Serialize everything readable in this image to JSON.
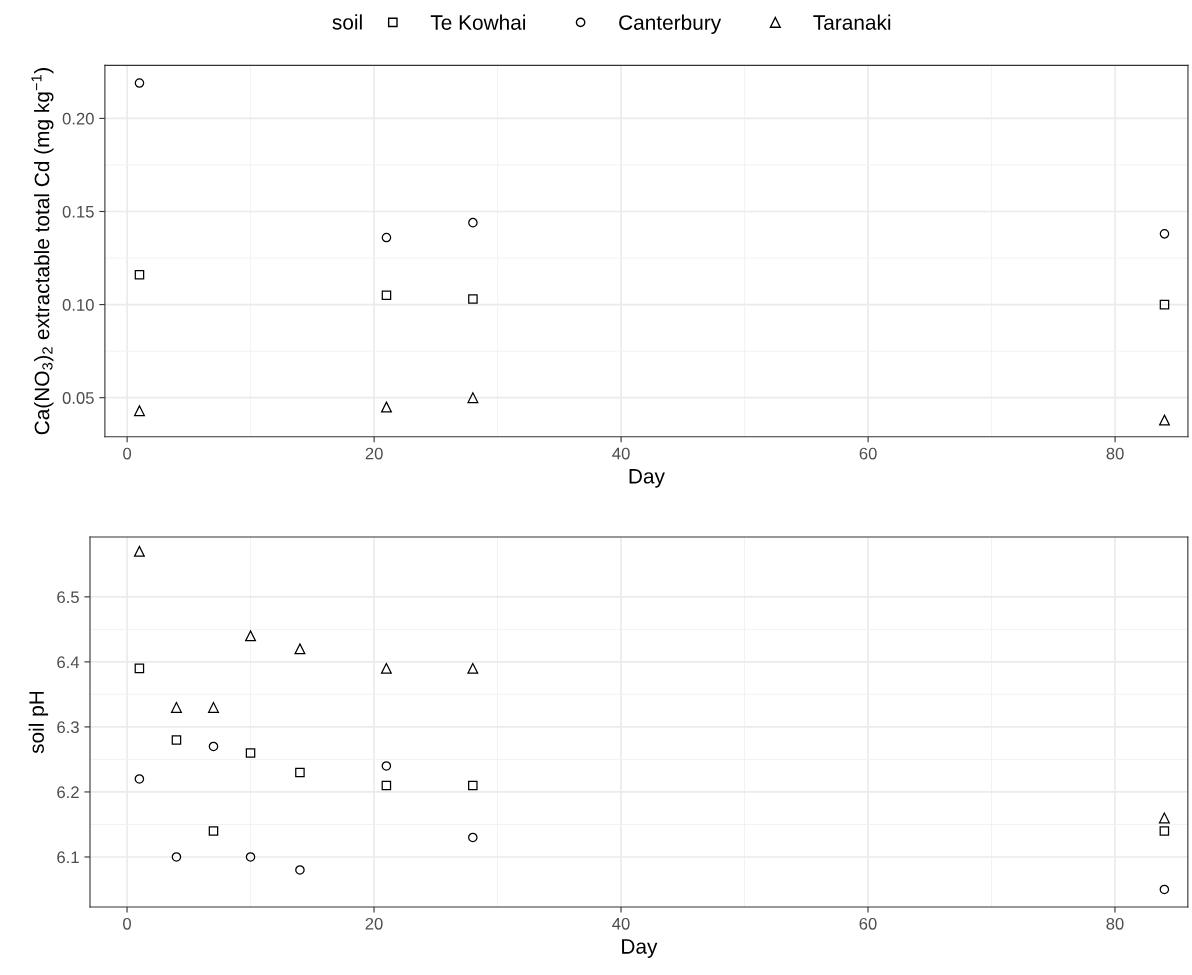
{
  "chart_data": [
    {
      "type": "scatter",
      "ylabel": "Ca(NO$_{3}$)$_{2}$ extractable total Cd (mg kg$^{−1}$)",
      "xlabel": "Day",
      "legend_title": "soil",
      "legend": "top",
      "grid": true,
      "xlim": [
        -1.8,
        85.9
      ],
      "xticks": [
        0,
        20,
        40,
        60,
        80
      ],
      "ylim": [
        0.029,
        0.2285
      ],
      "yticks": [
        {
          "value": 0.05,
          "label": "0.05"
        },
        {
          "value": 0.1,
          "label": "0.10"
        },
        {
          "value": 0.15,
          "label": "0.15"
        },
        {
          "value": 0.2,
          "label": "0.20"
        }
      ],
      "series": [
        {
          "name": "Te Kowhai",
          "color": "#000000",
          "marker": "square",
          "x": [
            1,
            21,
            28,
            84
          ],
          "values": [
            0.116,
            0.105,
            0.103,
            0.1
          ]
        },
        {
          "name": "Canterbury",
          "color": "#000000",
          "marker": "circle",
          "x": [
            1,
            21,
            28,
            84
          ],
          "values": [
            0.219,
            0.136,
            0.144,
            0.138
          ]
        },
        {
          "name": "Taranaki",
          "color": "#000000",
          "marker": "triangle",
          "x": [
            1,
            21,
            28,
            84
          ],
          "values": [
            0.043,
            0.045,
            0.05,
            0.038
          ]
        }
      ]
    },
    {
      "type": "scatter",
      "ylabel": "soil pH",
      "xlabel": "Day",
      "grid": true,
      "xlim": [
        -3.0,
        85.9
      ],
      "xticks": [
        0,
        20,
        40,
        60,
        80
      ],
      "ylim": [
        6.023,
        6.592
      ],
      "yticks": [
        6.1,
        6.2,
        6.3,
        6.4,
        6.5
      ],
      "series": [
        {
          "color": "#000000",
          "marker": "square",
          "x": [
            1,
            4,
            7,
            10,
            14,
            21,
            28,
            84
          ],
          "values": [
            6.39,
            6.28,
            6.14,
            6.26,
            6.23,
            6.21,
            6.21,
            6.14
          ]
        },
        {
          "color": "#000000",
          "marker": "circle",
          "x": [
            1,
            4,
            7,
            10,
            14,
            21,
            28,
            84
          ],
          "values": [
            6.22,
            6.1,
            6.27,
            6.1,
            6.08,
            6.24,
            6.13,
            6.05
          ]
        },
        {
          "color": "#000000",
          "marker": "triangle",
          "x": [
            1,
            4,
            7,
            10,
            14,
            21,
            28,
            84
          ],
          "values": [
            6.57,
            6.33,
            6.33,
            6.44,
            6.42,
            6.39,
            6.39,
            6.16
          ]
        }
      ]
    }
  ]
}
